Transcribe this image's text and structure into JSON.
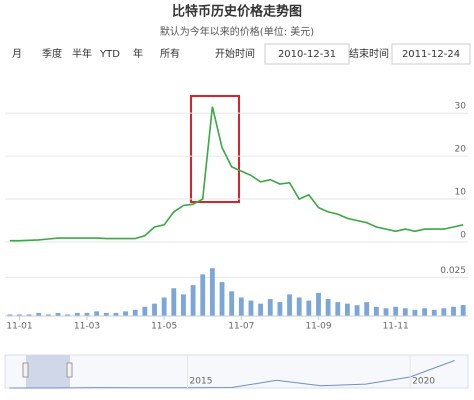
{
  "controls": {
    "range_buttons": [
      "月",
      "季度",
      "半年",
      "YTD",
      "年",
      "所有"
    ],
    "start_label": "开始时间",
    "start_date": "2010-12-31",
    "end_label": "结束时间",
    "end_date": "2011-12-24"
  },
  "chart_data": [
    {
      "type": "line",
      "title": "比特币历史价格走势图",
      "subtitle": "默认为今年以来的价格(单位: 美元)",
      "color": "#3aa843",
      "categories": [
        null,
        "11-01",
        null,
        null,
        null,
        null,
        null,
        null,
        "11-03",
        null,
        null,
        null,
        null,
        null,
        null,
        null,
        "11-05",
        null,
        null,
        null,
        null,
        null,
        null,
        null,
        "11-07",
        null,
        null,
        null,
        null,
        null,
        null,
        null,
        "11-09",
        null,
        null,
        null,
        null,
        null,
        null,
        null,
        "11-11",
        null,
        null,
        null,
        null,
        null,
        null,
        null
      ],
      "values": [
        0.3,
        0.3,
        0.4,
        0.5,
        0.7,
        0.9,
        0.9,
        0.9,
        0.9,
        0.9,
        0.8,
        0.8,
        0.8,
        0.8,
        1.5,
        3.5,
        4.0,
        7.0,
        8.5,
        8.8,
        10,
        31.5,
        22,
        17.5,
        16.5,
        15.5,
        14,
        14.5,
        13.5,
        13.8,
        10,
        11,
        8,
        7,
        6.5,
        5.5,
        5,
        4.5,
        3.5,
        3,
        2.5,
        3,
        2.5,
        3,
        3,
        3,
        3.5,
        4
      ],
      "ylim": [
        0,
        34
      ],
      "yticks": [
        0,
        10,
        20,
        30
      ],
      "grid": true
    },
    {
      "type": "bar",
      "color": "#7ca6d8",
      "values": [
        0.001,
        0.001,
        0.001,
        0.002,
        0.001,
        0.002,
        0.001,
        0.002,
        0.002,
        0.003,
        0.002,
        0.002,
        0.003,
        0.004,
        0.006,
        0.008,
        0.012,
        0.018,
        0.014,
        0.02,
        0.027,
        0.031,
        0.022,
        0.016,
        0.012,
        0.01,
        0.008,
        0.011,
        0.009,
        0.014,
        0.012,
        0.01,
        0.015,
        0.011,
        0.009,
        0.008,
        0.007,
        0.009,
        0.006,
        0.005,
        0.006,
        0.005,
        0.004,
        0.005,
        0.004,
        0.005,
        0.006,
        0.007
      ],
      "ylim": [
        0,
        0.035
      ],
      "yticks": [
        0,
        0.025
      ],
      "grid": true
    },
    {
      "type": "line",
      "color": "#6f8fc7",
      "x": [
        2011,
        2012,
        2013,
        2014,
        2015,
        2016,
        2017,
        2018,
        2019,
        2020,
        2021
      ],
      "values": [
        5,
        10,
        700,
        400,
        300,
        900,
        14000,
        4000,
        7000,
        20000,
        50000
      ],
      "xlim": [
        2010.9,
        2021.3
      ],
      "xticks": [
        2015,
        2020
      ],
      "ylim": [
        0,
        60000
      ]
    }
  ]
}
